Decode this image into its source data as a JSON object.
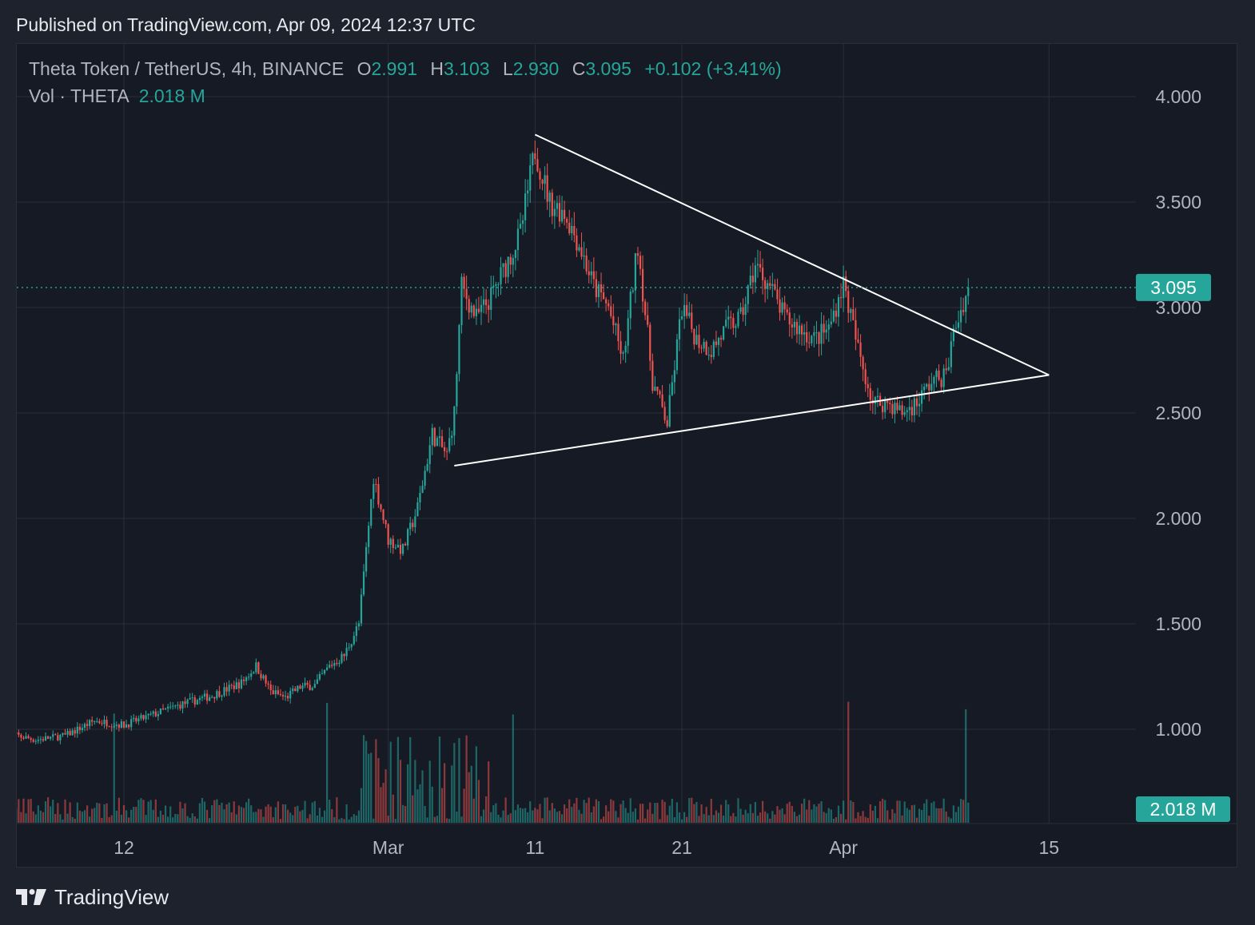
{
  "header": {
    "published_text": "Published on TradingView.com, Apr 09, 2024 12:37 UTC"
  },
  "legend": {
    "symbol": "Theta Token / TetherUS, 4h, BINANCE",
    "open_label": "O",
    "open": "2.991",
    "high_label": "H",
    "high": "3.103",
    "low_label": "L",
    "low": "2.930",
    "close_label": "C",
    "close": "3.095",
    "change": "+0.102 (+3.41%)",
    "vol_label": "Vol · THETA",
    "vol_value": "2.018 M"
  },
  "footer": {
    "brand": "TradingView"
  },
  "colors": {
    "up": "#26a69a",
    "down": "#ef5350",
    "background": "#161a25",
    "grid": "#2a2e39",
    "drawing": "#ffffff"
  },
  "chart_data": {
    "type": "candlestick",
    "symbol": "THETA/USDT",
    "interval": "4h",
    "exchange": "BINANCE",
    "y_ticks": [
      "4.000",
      "3.500",
      "3.000",
      "2.500",
      "2.000",
      "1.500",
      "1.000"
    ],
    "x_ticks": [
      {
        "label": "12",
        "date": "2024-02-12"
      },
      {
        "label": "Mar",
        "date": "2024-03-01"
      },
      {
        "label": "11",
        "date": "2024-03-11"
      },
      {
        "label": "21",
        "date": "2024-03-21"
      },
      {
        "label": "Apr",
        "date": "2024-04-01"
      },
      {
        "label": "15",
        "date": "2024-04-15"
      }
    ],
    "price_scale": "linear",
    "last_price": "3.095",
    "last_volume": "2.018 M",
    "close_path": [
      {
        "date": "2024-02-04",
        "price": 0.98
      },
      {
        "date": "2024-02-06",
        "price": 0.95
      },
      {
        "date": "2024-02-08",
        "price": 0.97
      },
      {
        "date": "2024-02-10",
        "price": 1.04
      },
      {
        "date": "2024-02-12",
        "price": 1.02
      },
      {
        "date": "2024-02-14",
        "price": 1.07
      },
      {
        "date": "2024-02-16",
        "price": 1.12
      },
      {
        "date": "2024-02-18",
        "price": 1.16
      },
      {
        "date": "2024-02-20",
        "price": 1.22
      },
      {
        "date": "2024-02-21",
        "price": 1.3
      },
      {
        "date": "2024-02-22",
        "price": 1.18
      },
      {
        "date": "2024-02-23",
        "price": 1.15
      },
      {
        "date": "2024-02-24",
        "price": 1.2
      },
      {
        "date": "2024-02-25",
        "price": 1.21
      },
      {
        "date": "2024-02-26",
        "price": 1.3
      },
      {
        "date": "2024-02-27",
        "price": 1.35
      },
      {
        "date": "2024-02-28",
        "price": 1.5
      },
      {
        "date": "2024-02-29",
        "price": 2.2
      },
      {
        "date": "2024-03-01",
        "price": 1.9
      },
      {
        "date": "2024-03-02",
        "price": 1.85
      },
      {
        "date": "2024-03-03",
        "price": 2.05
      },
      {
        "date": "2024-03-04",
        "price": 2.4
      },
      {
        "date": "2024-03-05",
        "price": 2.3
      },
      {
        "date": "2024-03-05T12:00",
        "price": 2.5
      },
      {
        "date": "2024-03-06",
        "price": 3.1
      },
      {
        "date": "2024-03-07",
        "price": 2.95
      },
      {
        "date": "2024-03-08",
        "price": 3.05
      },
      {
        "date": "2024-03-09",
        "price": 3.2
      },
      {
        "date": "2024-03-10",
        "price": 3.35
      },
      {
        "date": "2024-03-11",
        "price": 3.75
      },
      {
        "date": "2024-03-12",
        "price": 3.5
      },
      {
        "date": "2024-03-13",
        "price": 3.45
      },
      {
        "date": "2024-03-14",
        "price": 3.3
      },
      {
        "date": "2024-03-15",
        "price": 3.1
      },
      {
        "date": "2024-03-16",
        "price": 3.0
      },
      {
        "date": "2024-03-17",
        "price": 2.75
      },
      {
        "date": "2024-03-18",
        "price": 3.3
      },
      {
        "date": "2024-03-19",
        "price": 2.65
      },
      {
        "date": "2024-03-20",
        "price": 2.45
      },
      {
        "date": "2024-03-21",
        "price": 3.0
      },
      {
        "date": "2024-03-22",
        "price": 2.85
      },
      {
        "date": "2024-03-23",
        "price": 2.8
      },
      {
        "date": "2024-03-24",
        "price": 2.9
      },
      {
        "date": "2024-03-25",
        "price": 2.95
      },
      {
        "date": "2024-03-26",
        "price": 3.2
      },
      {
        "date": "2024-03-27",
        "price": 3.1
      },
      {
        "date": "2024-03-28",
        "price": 2.95
      },
      {
        "date": "2024-03-29",
        "price": 2.9
      },
      {
        "date": "2024-03-30",
        "price": 2.85
      },
      {
        "date": "2024-03-31",
        "price": 2.9
      },
      {
        "date": "2024-04-01",
        "price": 3.12
      },
      {
        "date": "2024-04-02",
        "price": 2.8
      },
      {
        "date": "2024-04-03",
        "price": 2.55
      },
      {
        "date": "2024-04-04",
        "price": 2.55
      },
      {
        "date": "2024-04-05",
        "price": 2.5
      },
      {
        "date": "2024-04-06",
        "price": 2.55
      },
      {
        "date": "2024-04-07",
        "price": 2.65
      },
      {
        "date": "2024-04-08",
        "price": 2.68
      },
      {
        "date": "2024-04-08T12:00",
        "price": 2.88
      },
      {
        "date": "2024-04-09T12:00",
        "price": 3.095
      }
    ],
    "drawings": [
      {
        "type": "trendline",
        "from": {
          "date": "2024-03-11",
          "price": 3.82
        },
        "to": {
          "date": "2024-04-15",
          "price": 2.68
        }
      },
      {
        "type": "trendline",
        "from": {
          "date": "2024-03-05T12:00",
          "price": 2.25
        },
        "to": {
          "date": "2024-04-15",
          "price": 2.68
        }
      }
    ]
  }
}
